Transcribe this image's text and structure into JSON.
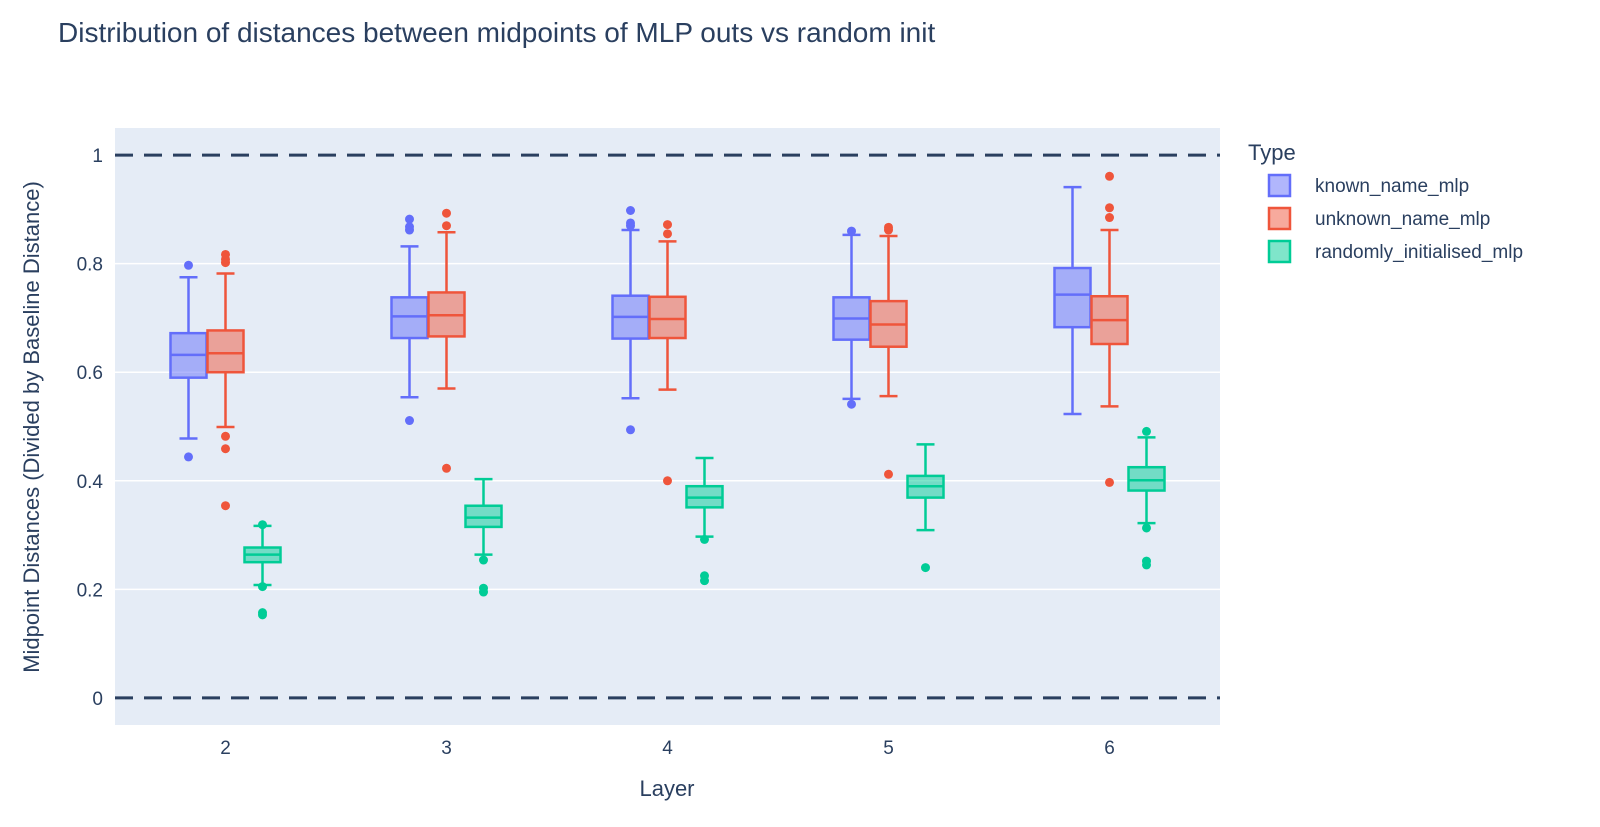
{
  "chart_data": {
    "type": "box",
    "title": "Distribution of distances between midpoints of MLP outs vs random init",
    "xlabel": "Layer",
    "ylabel": "Midpoint Distances (Divided by Baseline Distance)",
    "categories": [
      "2",
      "3",
      "4",
      "5",
      "6"
    ],
    "yticks": [
      0,
      0.2,
      0.4,
      0.6,
      0.8,
      1
    ],
    "ytick_labels": [
      "0",
      "0.2",
      "0.4",
      "0.6",
      "0.8",
      "1"
    ],
    "ylim": [
      -0.05,
      1.05
    ],
    "grid": true,
    "reference_lines": [
      0,
      1
    ],
    "legend": {
      "title": "Type",
      "placement": "right"
    },
    "series": [
      {
        "name": "known_name_mlp",
        "color": "#636efa",
        "boxes": [
          {
            "whisker_low": 0.478,
            "q1": 0.59,
            "median": 0.632,
            "q3": 0.672,
            "whisker_high": 0.775,
            "outliers": [
              0.444,
              0.797
            ]
          },
          {
            "whisker_low": 0.554,
            "q1": 0.663,
            "median": 0.703,
            "q3": 0.738,
            "whisker_high": 0.832,
            "outliers": [
              0.511,
              0.862,
              0.868,
              0.882
            ]
          },
          {
            "whisker_low": 0.552,
            "q1": 0.662,
            "median": 0.702,
            "q3": 0.741,
            "whisker_high": 0.862,
            "outliers": [
              0.494,
              0.87,
              0.875,
              0.898
            ]
          },
          {
            "whisker_low": 0.551,
            "q1": 0.66,
            "median": 0.699,
            "q3": 0.738,
            "whisker_high": 0.853,
            "outliers": [
              0.541,
              0.86
            ]
          },
          {
            "whisker_low": 0.523,
            "q1": 0.683,
            "median": 0.743,
            "q3": 0.792,
            "whisker_high": 0.941,
            "outliers": []
          }
        ]
      },
      {
        "name": "unknown_name_mlp",
        "color": "#ef553b",
        "boxes": [
          {
            "whisker_low": 0.499,
            "q1": 0.6,
            "median": 0.635,
            "q3": 0.677,
            "whisker_high": 0.782,
            "outliers": [
              0.354,
              0.459,
              0.482,
              0.802,
              0.808,
              0.817
            ]
          },
          {
            "whisker_low": 0.57,
            "q1": 0.666,
            "median": 0.705,
            "q3": 0.747,
            "whisker_high": 0.858,
            "outliers": [
              0.423,
              0.87,
              0.893
            ]
          },
          {
            "whisker_low": 0.568,
            "q1": 0.663,
            "median": 0.698,
            "q3": 0.739,
            "whisker_high": 0.841,
            "outliers": [
              0.4,
              0.855,
              0.872
            ]
          },
          {
            "whisker_low": 0.556,
            "q1": 0.647,
            "median": 0.688,
            "q3": 0.731,
            "whisker_high": 0.851,
            "outliers": [
              0.412,
              0.862,
              0.867
            ]
          },
          {
            "whisker_low": 0.537,
            "q1": 0.652,
            "median": 0.696,
            "q3": 0.74,
            "whisker_high": 0.862,
            "outliers": [
              0.397,
              0.885,
              0.903,
              0.961
            ]
          }
        ]
      },
      {
        "name": "randomly_initialised_mlp",
        "color": "#00cc96",
        "boxes": [
          {
            "whisker_low": 0.208,
            "q1": 0.25,
            "median": 0.264,
            "q3": 0.277,
            "whisker_high": 0.317,
            "outliers": [
              0.153,
              0.157,
              0.205,
              0.319
            ]
          },
          {
            "whisker_low": 0.264,
            "q1": 0.315,
            "median": 0.332,
            "q3": 0.354,
            "whisker_high": 0.403,
            "outliers": [
              0.195,
              0.202,
              0.254
            ]
          },
          {
            "whisker_low": 0.297,
            "q1": 0.351,
            "median": 0.369,
            "q3": 0.39,
            "whisker_high": 0.442,
            "outliers": [
              0.216,
              0.225,
              0.292
            ]
          },
          {
            "whisker_low": 0.309,
            "q1": 0.369,
            "median": 0.39,
            "q3": 0.409,
            "whisker_high": 0.467,
            "outliers": [
              0.24
            ]
          },
          {
            "whisker_low": 0.322,
            "q1": 0.382,
            "median": 0.401,
            "q3": 0.425,
            "whisker_high": 0.48,
            "outliers": [
              0.245,
              0.252,
              0.313,
              0.491
            ]
          }
        ]
      }
    ]
  }
}
